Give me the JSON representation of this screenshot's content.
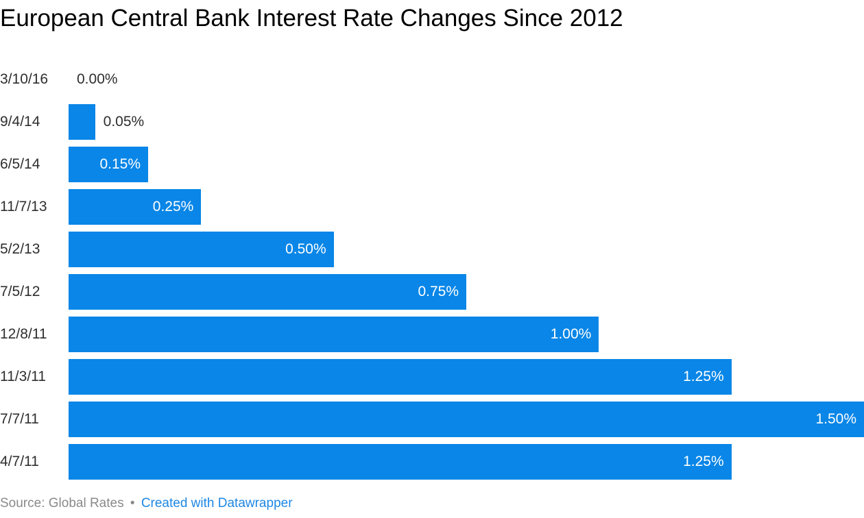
{
  "title": "European Central Bank Interest Rate Changes Since 2012",
  "chart_data": {
    "type": "bar",
    "orientation": "horizontal",
    "title": "European Central Bank Interest Rate Changes Since 2012",
    "categories": [
      "3/10/16",
      "9/4/14",
      "6/5/14",
      "11/7/13",
      "5/2/13",
      "7/5/12",
      "12/8/11",
      "11/3/11",
      "7/7/11",
      "4/7/11"
    ],
    "values": [
      0.0,
      0.05,
      0.15,
      0.25,
      0.5,
      0.75,
      1.0,
      1.25,
      1.5,
      1.25
    ],
    "value_labels": [
      "0.00%",
      "0.05%",
      "0.15%",
      "0.25%",
      "0.50%",
      "0.75%",
      "1.00%",
      "1.25%",
      "1.50%",
      "1.25%"
    ],
    "xlabel": "",
    "ylabel": "",
    "xlim": [
      0,
      1.5
    ],
    "grid": false,
    "legend": false,
    "bar_color": "#0986e7",
    "inside_label_color": "#ffffff",
    "outside_label_color": "#2e2e2e"
  },
  "footer": {
    "source_text": "Source: Global Rates",
    "separator": "•",
    "link_label": "Created with Datawrapper",
    "text_color": "#8a8a8a",
    "link_color": "#1d87e4"
  }
}
